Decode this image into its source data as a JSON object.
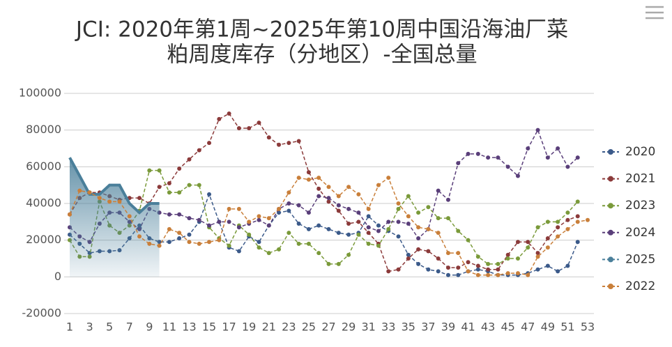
{
  "chart_data": {
    "type": "line",
    "title": [
      "JCI: 2020年第1周~2025年第10周中国沿海油厂菜",
      "粕周度库存（分地区）-全国总量"
    ],
    "categories": [
      1,
      null,
      3,
      null,
      5,
      null,
      7,
      null,
      9,
      null,
      11,
      null,
      13,
      null,
      15,
      null,
      17,
      null,
      19,
      null,
      21,
      null,
      23,
      null,
      25,
      null,
      27,
      null,
      29,
      null,
      31,
      null,
      33,
      null,
      35,
      null,
      37,
      null,
      39,
      null,
      41,
      null,
      43,
      null,
      45,
      null,
      47,
      null,
      49,
      null,
      51,
      null,
      53
    ],
    "ylim": [
      -20000,
      100000
    ],
    "yticks": [
      -20000,
      0,
      20000,
      40000,
      60000,
      80000,
      100000
    ],
    "grid": true,
    "legend": "right",
    "series": [
      {
        "name": "2020",
        "color": "#3b5a8a",
        "values": [
          23000,
          18000,
          13000,
          14000,
          14000,
          14500,
          21000,
          28000,
          21000,
          19000,
          19000,
          21000,
          23000,
          30000,
          45000,
          30000,
          16000,
          14000,
          22000,
          19000,
          28000,
          35000,
          36000,
          29000,
          26000,
          28000,
          26000,
          24000,
          23000,
          24000,
          33000,
          28000,
          25000,
          22000,
          12000,
          7000,
          4000,
          3000,
          1000,
          1000,
          3000,
          4000,
          3000,
          1000,
          1000,
          1000,
          2000,
          4000,
          6000,
          3000,
          6000,
          19000,
          null
        ]
      },
      {
        "name": "2021",
        "color": "#8b3a3a",
        "values": [
          34000,
          43000,
          46000,
          46000,
          44000,
          42000,
          43000,
          43000,
          40000,
          49000,
          51000,
          59000,
          64000,
          69000,
          73000,
          86000,
          89000,
          81000,
          81000,
          84000,
          76000,
          72000,
          73000,
          74000,
          57000,
          48000,
          41000,
          36000,
          29000,
          30000,
          24000,
          18000,
          3000,
          4000,
          10000,
          15000,
          14000,
          10000,
          5000,
          5000,
          8000,
          6000,
          4000,
          4000,
          12000,
          19000,
          19000,
          13000,
          21000,
          27000,
          31000,
          33000,
          null
        ]
      },
      {
        "name": "2023",
        "color": "#7a9a3a",
        "values": [
          20000,
          11000,
          11000,
          41000,
          28000,
          24000,
          28000,
          36000,
          58000,
          58000,
          46000,
          46000,
          50000,
          50000,
          27000,
          21000,
          17000,
          28000,
          23000,
          16000,
          13000,
          15000,
          24000,
          18000,
          18000,
          13000,
          7000,
          7000,
          12000,
          23000,
          18000,
          17000,
          26000,
          37000,
          44000,
          35000,
          38000,
          32000,
          32000,
          25000,
          20000,
          11000,
          7000,
          7000,
          10000,
          10000,
          16000,
          27000,
          30000,
          30000,
          35000,
          41000,
          null
        ]
      },
      {
        "name": "2024",
        "color": "#5a3f7a",
        "values": [
          27000,
          22000,
          19000,
          29000,
          35000,
          35000,
          30000,
          26000,
          37000,
          35000,
          34000,
          34000,
          32000,
          31000,
          28000,
          30000,
          30000,
          27000,
          29000,
          31000,
          28000,
          37000,
          40000,
          39000,
          35000,
          44000,
          43000,
          39000,
          37000,
          35000,
          27000,
          25000,
          30000,
          30000,
          29000,
          21000,
          26000,
          47000,
          42000,
          62000,
          67000,
          67000,
          65000,
          65000,
          60000,
          55000,
          70000,
          80000,
          65000,
          70000,
          60000,
          65000,
          null
        ]
      },
      {
        "name": "2025",
        "color": "#4a7f9a",
        "values": [
          65000,
          55000,
          45000,
          45000,
          50000,
          50000,
          40000,
          35000,
          40000,
          40000,
          null,
          null,
          null,
          null,
          null,
          null,
          null,
          null,
          null,
          null,
          null,
          null,
          null,
          null,
          null,
          null,
          null,
          null,
          null,
          null,
          null,
          null,
          null,
          null,
          null,
          null,
          null,
          null,
          null,
          null,
          null,
          null,
          null,
          null,
          null,
          null,
          null,
          null,
          null,
          null,
          null,
          null,
          null
        ]
      },
      {
        "name": "2022",
        "color": "#c97f3a",
        "values": [
          34000,
          47000,
          46000,
          43000,
          41000,
          41000,
          33000,
          22000,
          18000,
          17000,
          26000,
          24000,
          19000,
          18000,
          19000,
          20000,
          37000,
          37000,
          30000,
          33000,
          32000,
          37000,
          46000,
          54000,
          53000,
          54000,
          49000,
          44000,
          49000,
          45000,
          37000,
          50000,
          54000,
          40000,
          33000,
          27000,
          26000,
          24000,
          13000,
          13000,
          3000,
          1000,
          1000,
          1000,
          2000,
          2000,
          1000,
          11000,
          16000,
          22000,
          26000,
          30000,
          31000
        ]
      }
    ]
  }
}
